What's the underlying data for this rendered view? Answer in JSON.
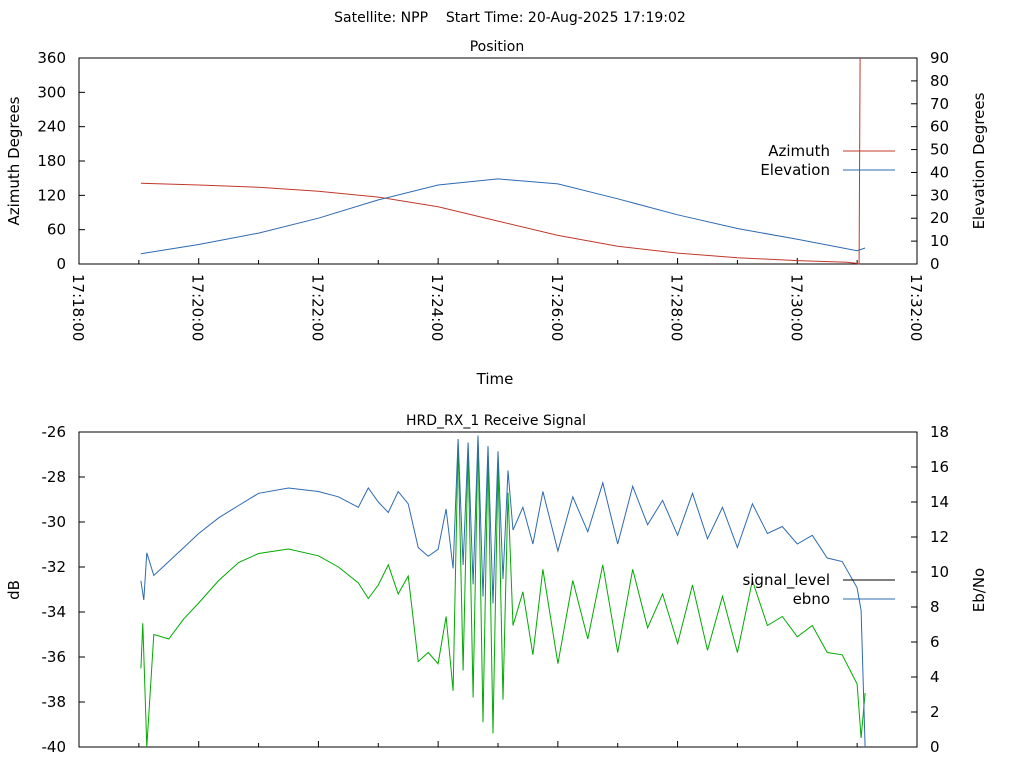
{
  "figure_title": "Satellite: NPP    Start Time: 20-Aug-2025 17:19:02",
  "colors": {
    "azimuth": "#c0392b",
    "elevation": "#2e6ab0",
    "signal_level": "#00aa00",
    "ebno": "#2e6ab0",
    "axis": "#000000"
  },
  "chart_data": [
    {
      "type": "line",
      "title": "Position",
      "xlabel": "Time",
      "ylabel": "Azimuth Degrees",
      "y2label": "Elevation Degrees",
      "x_ticks": [
        "17:18:00",
        "17:20:00",
        "17:22:00",
        "17:24:00",
        "17:26:00",
        "17:28:00",
        "17:30:00",
        "17:32:00"
      ],
      "xlim": [
        "17:18:00",
        "17:32:00"
      ],
      "ylim": [
        0,
        360
      ],
      "y_ticks": [
        "0",
        "60",
        "120",
        "180",
        "240",
        "300",
        "360"
      ],
      "y2lim": [
        0,
        90
      ],
      "y2_ticks": [
        "0",
        "10",
        "20",
        "30",
        "40",
        "50",
        "60",
        "70",
        "80",
        "90"
      ],
      "legend_position": "right",
      "grid": false,
      "series": [
        {
          "name": "Azimuth",
          "axis": "left",
          "points": [
            [
              "17:19:02",
              141
            ],
            [
              "17:20:00",
              138
            ],
            [
              "17:21:00",
              134
            ],
            [
              "17:22:00",
              127
            ],
            [
              "17:23:00",
              117
            ],
            [
              "17:24:00",
              100
            ],
            [
              "17:25:00",
              75
            ],
            [
              "17:26:00",
              50
            ],
            [
              "17:27:00",
              31
            ],
            [
              "17:28:00",
              19
            ],
            [
              "17:29:00",
              11
            ],
            [
              "17:30:00",
              6
            ],
            [
              "17:30:50",
              3
            ],
            [
              "17:31:00",
              1
            ],
            [
              "17:31:02",
              0
            ],
            [
              "17:31:03",
              360
            ]
          ]
        },
        {
          "name": "Elevation",
          "axis": "right",
          "points": [
            [
              "17:19:02",
              4.5
            ],
            [
              "17:20:00",
              8.5
            ],
            [
              "17:21:00",
              13.5
            ],
            [
              "17:22:00",
              20
            ],
            [
              "17:23:00",
              28
            ],
            [
              "17:24:00",
              34.5
            ],
            [
              "17:25:00",
              37.2
            ],
            [
              "17:26:00",
              35
            ],
            [
              "17:27:00",
              28.5
            ],
            [
              "17:28:00",
              21.5
            ],
            [
              "17:29:00",
              15.5
            ],
            [
              "17:30:00",
              10.8
            ],
            [
              "17:31:00",
              5.8
            ],
            [
              "17:31:08",
              7
            ]
          ]
        }
      ]
    },
    {
      "type": "line",
      "title": "HRD_RX_1 Receive Signal",
      "ylabel": "dB",
      "y2label": "Eb/No",
      "ylim": [
        -40,
        -26
      ],
      "y_ticks": [
        "-26",
        "-28",
        "-30",
        "-32",
        "-34",
        "-36",
        "-38",
        "-40"
      ],
      "y2lim": [
        0,
        18
      ],
      "y2_ticks": [
        "0",
        "2",
        "4",
        "6",
        "8",
        "10",
        "12",
        "14",
        "16",
        "18"
      ],
      "legend_position": "right",
      "grid": false,
      "series": [
        {
          "name": "signal_level",
          "axis": "left",
          "points": [
            [
              "17:19:02",
              -36.5
            ],
            [
              "17:19:04",
              -34.5
            ],
            [
              "17:19:08",
              -40
            ],
            [
              "17:19:15",
              -35
            ],
            [
              "17:19:30",
              -35.2
            ],
            [
              "17:19:45",
              -34.3
            ],
            [
              "17:20:00",
              -33.6
            ],
            [
              "17:20:20",
              -32.6
            ],
            [
              "17:20:40",
              -31.8
            ],
            [
              "17:21:00",
              -31.4
            ],
            [
              "17:21:30",
              -31.2
            ],
            [
              "17:22:00",
              -31.5
            ],
            [
              "17:22:20",
              -32
            ],
            [
              "17:22:40",
              -32.7
            ],
            [
              "17:22:50",
              -33.4
            ],
            [
              "17:23:00",
              -32.8
            ],
            [
              "17:23:10",
              -31.9
            ],
            [
              "17:23:20",
              -33.2
            ],
            [
              "17:23:30",
              -32.4
            ],
            [
              "17:23:40",
              -36.2
            ],
            [
              "17:23:50",
              -35.8
            ],
            [
              "17:24:00",
              -36.3
            ],
            [
              "17:24:08",
              -34.2
            ],
            [
              "17:24:15",
              -37.5
            ],
            [
              "17:24:20",
              -26.5
            ],
            [
              "17:24:25",
              -36.6
            ],
            [
              "17:24:30",
              -26.8
            ],
            [
              "17:24:35",
              -37.8
            ],
            [
              "17:24:40",
              -26.3
            ],
            [
              "17:24:45",
              -38.9
            ],
            [
              "17:24:50",
              -27.0
            ],
            [
              "17:24:55",
              -39.4
            ],
            [
              "17:25:00",
              -27.4
            ],
            [
              "17:25:05",
              -37.9
            ],
            [
              "17:25:10",
              -28.7
            ],
            [
              "17:25:15",
              -34.6
            ],
            [
              "17:25:25",
              -33.1
            ],
            [
              "17:25:35",
              -35.9
            ],
            [
              "17:25:45",
              -32.1
            ],
            [
              "17:26:00",
              -36.3
            ],
            [
              "17:26:15",
              -32.6
            ],
            [
              "17:26:30",
              -35.2
            ],
            [
              "17:26:45",
              -31.9
            ],
            [
              "17:27:00",
              -35.8
            ],
            [
              "17:27:15",
              -32.1
            ],
            [
              "17:27:30",
              -34.7
            ],
            [
              "17:27:45",
              -33.2
            ],
            [
              "17:28:00",
              -35.4
            ],
            [
              "17:28:15",
              -32.8
            ],
            [
              "17:28:30",
              -35.7
            ],
            [
              "17:28:45",
              -33.3
            ],
            [
              "17:29:00",
              -35.8
            ],
            [
              "17:29:15",
              -32.6
            ],
            [
              "17:29:30",
              -34.6
            ],
            [
              "17:29:45",
              -34.2
            ],
            [
              "17:30:00",
              -35.1
            ],
            [
              "17:30:15",
              -34.6
            ],
            [
              "17:30:30",
              -35.8
            ],
            [
              "17:30:45",
              -35.9
            ],
            [
              "17:31:00",
              -37.2
            ],
            [
              "17:31:04",
              -39.6
            ],
            [
              "17:31:08",
              -37.6
            ]
          ]
        },
        {
          "name": "ebno",
          "axis": "right",
          "points": [
            [
              "17:19:02",
              9.5
            ],
            [
              "17:19:05",
              8.4
            ],
            [
              "17:19:08",
              11.1
            ],
            [
              "17:19:15",
              9.8
            ],
            [
              "17:19:30",
              10.6
            ],
            [
              "17:19:45",
              11.4
            ],
            [
              "17:20:00",
              12.2
            ],
            [
              "17:20:20",
              13.1
            ],
            [
              "17:20:40",
              13.8
            ],
            [
              "17:21:00",
              14.5
            ],
            [
              "17:21:30",
              14.8
            ],
            [
              "17:22:00",
              14.6
            ],
            [
              "17:22:20",
              14.3
            ],
            [
              "17:22:40",
              13.7
            ],
            [
              "17:22:50",
              14.8
            ],
            [
              "17:23:00",
              14.0
            ],
            [
              "17:23:10",
              13.4
            ],
            [
              "17:23:20",
              14.6
            ],
            [
              "17:23:30",
              13.9
            ],
            [
              "17:23:40",
              11.4
            ],
            [
              "17:23:50",
              10.9
            ],
            [
              "17:24:00",
              11.3
            ],
            [
              "17:24:08",
              13.6
            ],
            [
              "17:24:15",
              10.2
            ],
            [
              "17:24:20",
              17.6
            ],
            [
              "17:24:25",
              10.4
            ],
            [
              "17:24:30",
              17.4
            ],
            [
              "17:24:35",
              9.3
            ],
            [
              "17:24:40",
              17.8
            ],
            [
              "17:24:45",
              8.6
            ],
            [
              "17:24:50",
              17.2
            ],
            [
              "17:24:55",
              8.2
            ],
            [
              "17:25:00",
              16.9
            ],
            [
              "17:25:05",
              9.6
            ],
            [
              "17:25:10",
              15.8
            ],
            [
              "17:25:15",
              12.4
            ],
            [
              "17:25:25",
              13.7
            ],
            [
              "17:25:35",
              11.6
            ],
            [
              "17:25:45",
              14.6
            ],
            [
              "17:26:00",
              11.2
            ],
            [
              "17:26:15",
              14.3
            ],
            [
              "17:26:30",
              12.3
            ],
            [
              "17:26:45",
              15.1
            ],
            [
              "17:27:00",
              11.6
            ],
            [
              "17:27:15",
              14.9
            ],
            [
              "17:27:30",
              12.7
            ],
            [
              "17:27:45",
              14.1
            ],
            [
              "17:28:00",
              12.1
            ],
            [
              "17:28:15",
              14.5
            ],
            [
              "17:28:30",
              11.9
            ],
            [
              "17:28:45",
              13.7
            ],
            [
              "17:29:00",
              11.4
            ],
            [
              "17:29:15",
              13.9
            ],
            [
              "17:29:30",
              12.2
            ],
            [
              "17:29:45",
              12.6
            ],
            [
              "17:30:00",
              11.6
            ],
            [
              "17:30:15",
              12.1
            ],
            [
              "17:30:30",
              10.8
            ],
            [
              "17:30:45",
              10.6
            ],
            [
              "17:31:00",
              9.1
            ],
            [
              "17:31:04",
              7.8
            ],
            [
              "17:31:08",
              0
            ]
          ]
        }
      ]
    }
  ]
}
